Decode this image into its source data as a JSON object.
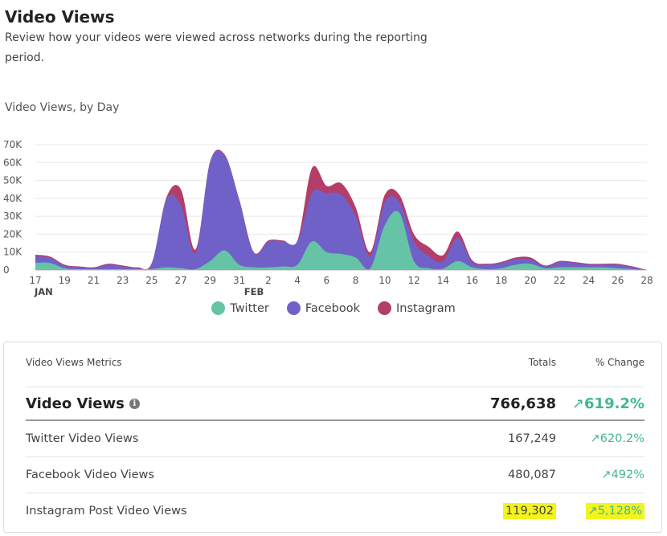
{
  "header": {
    "title": "Video Views",
    "description": "Review how your videos were viewed across networks during the reporting period."
  },
  "chart_section": {
    "title": "Video Views, by Day"
  },
  "colors": {
    "twitter": "#65c3a6",
    "facebook": "#7061c9",
    "instagram": "#b33e69",
    "positive": "#3fb890",
    "highlight": "#f3f31e"
  },
  "chart_data": {
    "type": "area",
    "stacked": true,
    "ylim": [
      0,
      70000
    ],
    "y_ticks": [
      0,
      10000,
      20000,
      30000,
      40000,
      50000,
      60000,
      70000
    ],
    "y_tick_labels": [
      "0",
      "10K",
      "20K",
      "30K",
      "40K",
      "50K",
      "60K",
      "70K"
    ],
    "x": [
      "Jan 17",
      "Jan 18",
      "Jan 19",
      "Jan 20",
      "Jan 21",
      "Jan 22",
      "Jan 23",
      "Jan 24",
      "Jan 25",
      "Jan 26",
      "Jan 27",
      "Jan 28",
      "Jan 29",
      "Jan 30",
      "Jan 31",
      "Feb 1",
      "Feb 2",
      "Feb 3",
      "Feb 4",
      "Feb 5",
      "Feb 6",
      "Feb 7",
      "Feb 8",
      "Feb 9",
      "Feb 10",
      "Feb 11",
      "Feb 12",
      "Feb 13",
      "Feb 14",
      "Feb 15",
      "Feb 16",
      "Feb 17",
      "Feb 18",
      "Feb 19",
      "Feb 20",
      "Feb 21",
      "Feb 22",
      "Feb 23",
      "Feb 24",
      "Feb 25",
      "Feb 26",
      "Feb 27",
      "Feb 28"
    ],
    "x_tick_labels": [
      "17",
      "19",
      "21",
      "23",
      "25",
      "27",
      "29",
      "31",
      "2",
      "4",
      "6",
      "8",
      "10",
      "12",
      "14",
      "16",
      "18",
      "20",
      "22",
      "24",
      "26",
      "28"
    ],
    "month_labels": [
      {
        "label": "JAN",
        "at": "Jan 17"
      },
      {
        "label": "FEB",
        "at": "Feb 1"
      }
    ],
    "grid": true,
    "legend_position": "bottom",
    "series": [
      {
        "name": "Twitter",
        "color": "#65c3a6",
        "values": [
          4000,
          4000,
          1000,
          500,
          500,
          500,
          500,
          500,
          500,
          1500,
          1000,
          500,
          5000,
          11000,
          3000,
          1500,
          1500,
          2000,
          3000,
          16000,
          10000,
          9000,
          7000,
          1000,
          25000,
          32000,
          5000,
          1000,
          800,
          5000,
          1500,
          500,
          1000,
          3000,
          3500,
          1000,
          1500,
          1500,
          1500,
          1500,
          1000,
          500,
          0
        ]
      },
      {
        "name": "Facebook",
        "color": "#7061c9",
        "values": [
          3500,
          3000,
          1500,
          1000,
          500,
          2500,
          1500,
          500,
          3000,
          38000,
          35000,
          9000,
          55000,
          53000,
          36000,
          8000,
          14500,
          14000,
          13000,
          27000,
          33000,
          33000,
          23000,
          7000,
          13000,
          6000,
          11000,
          7000,
          4000,
          13000,
          3000,
          2500,
          3000,
          3000,
          2500,
          1000,
          3000,
          2500,
          1500,
          1500,
          2000,
          1000,
          0
        ]
      },
      {
        "name": "Instagram",
        "color": "#b33e69",
        "values": [
          1000,
          500,
          500,
          500,
          500,
          500,
          500,
          500,
          500,
          1000,
          9000,
          2000,
          500,
          500,
          500,
          500,
          500,
          500,
          500,
          14000,
          4000,
          6500,
          5000,
          2000,
          4000,
          4000,
          4000,
          5000,
          3500,
          3500,
          1000,
          500,
          500,
          1000,
          1000,
          500,
          500,
          500,
          500,
          500,
          500,
          500,
          0
        ]
      }
    ]
  },
  "metrics": {
    "header_label": "Video Views Metrics",
    "totals_label": "Totals",
    "change_label": "% Change",
    "main": {
      "label": "Video Views",
      "total": "766,638",
      "change": "619.2%"
    },
    "rows": [
      {
        "label": "Twitter Video Views",
        "total": "167,249",
        "change": "620.2%"
      },
      {
        "label": "Facebook Video Views",
        "total": "480,087",
        "change": "492%"
      },
      {
        "label": "Instagram Post Video Views",
        "total": "119,302",
        "change": "5,128%"
      }
    ]
  },
  "icons": {
    "info": "info-icon",
    "trend": "arrow-up-right-icon"
  }
}
